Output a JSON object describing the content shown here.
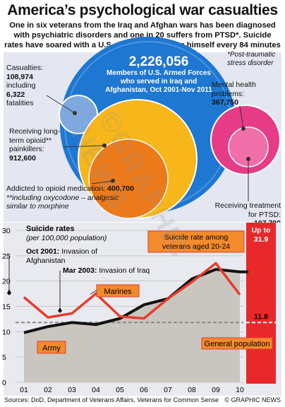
{
  "header": {
    "title": "America’s psychological war casualties",
    "subtitle": "One in six veterans from the Iraq and Afghan wars has been diagnosed with psychiatric disorders and one in 20 suffers from PTSD*. Suicide rates have soared with a U.S. war veteran killing himself every 84 minutes"
  },
  "bubbles": {
    "center_value": "2,226,056",
    "center_text": "Members of U.S. Armed Forces who served in Iraq and Afghanistan, Oct 2001-Nov 2011",
    "footnote": "*Post-traumatic stress disorder",
    "casualties": {
      "label1": "Casualties:",
      "value1": "108,974",
      "label2": "including",
      "value2": "6,322",
      "label3": "fatalities"
    },
    "opioid": {
      "label": "Receiving long-term opioid** painkillers:",
      "value": "912,600"
    },
    "addicted": {
      "label": "Addicted to opioid medication:",
      "value": "400,700",
      "note": "**including oxycodone – analgesic similar to morphine"
    },
    "mental": {
      "label": "Mental health problems:",
      "value": "367,750"
    },
    "ptsd": {
      "label": "Receiving treatment for PTSD:",
      "value": "107,700"
    },
    "colors": {
      "blue": "#1e77d1",
      "blue_light": "#7fa9de",
      "yellow": "#f7b619",
      "orange": "#ec7a1a",
      "pink": "#e63b86",
      "pink_light": "#f16fa8"
    }
  },
  "chart_data": {
    "type": "line",
    "title": "Suicide rates",
    "subtitle": "(per 100,000 population)",
    "x": [
      "01",
      "02",
      "03",
      "04",
      "05",
      "06",
      "07",
      "08",
      "09",
      "10"
    ],
    "ylim": [
      0,
      30
    ],
    "yticks": [
      0,
      5,
      10,
      15,
      20,
      25,
      30
    ],
    "grid": true,
    "series": [
      {
        "name": "Marines",
        "color": "#e63b2e",
        "values": [
          16.8,
          12.8,
          13.6,
          17.5,
          13.0,
          12.6,
          16.5,
          19.8,
          23.5,
          17.3
        ]
      },
      {
        "name": "Army",
        "color": "#111111",
        "values": [
          9.8,
          11.0,
          11.8,
          11.4,
          12.6,
          15.3,
          16.5,
          20.4,
          22.3,
          21.8
        ]
      }
    ],
    "general_population": {
      "label": "General population",
      "value": 11.8,
      "value_label": "11.8"
    },
    "young_veterans": {
      "label": "Suicide rate among veterans aged 20-24",
      "value_label": "Up to 31.9",
      "value": 31.9
    },
    "annotations": [
      {
        "year_bold": "Oct 2001:",
        "text": "Invasion of Afghanistan"
      },
      {
        "year_bold": "Mar 2003:",
        "text": "Invasion of Iraq"
      }
    ]
  },
  "footer": {
    "source": "Sources: DoD, Department of Veterans Affairs, Veterans for Common Sense",
    "credit": "© GRAPHIC NEWS",
    "watermark": "©GRAPHIC NEWS"
  }
}
